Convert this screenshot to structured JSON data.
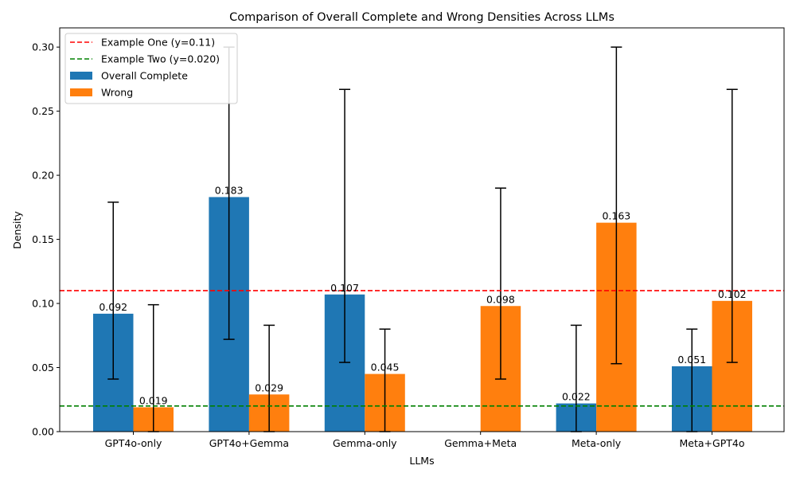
{
  "chart_data": {
    "type": "bar",
    "title": "Comparison of Overall Complete and Wrong Densities Across LLMs",
    "xlabel": "LLMs",
    "ylabel": "Density",
    "ylim": [
      0,
      0.315
    ],
    "yticks": [
      "0.00",
      "0.05",
      "0.10",
      "0.15",
      "0.20",
      "0.25",
      "0.30"
    ],
    "categories": [
      "GPT4o-only",
      "GPT4o+Gemma",
      "Gemma-only",
      "Gemma+Meta",
      "Meta-only",
      "Meta+GPT4o"
    ],
    "series": [
      {
        "name": "Overall Complete",
        "color": "#1f77b4",
        "values": [
          0.092,
          0.183,
          0.107,
          null,
          0.022,
          0.051
        ],
        "labels": [
          "0.092",
          "0.183",
          "0.107",
          "",
          "0.022",
          "0.051"
        ],
        "err_low": [
          0.041,
          0.072,
          0.054,
          null,
          0.0,
          0.0
        ],
        "err_high": [
          0.179,
          0.3,
          0.267,
          null,
          0.083,
          0.08
        ]
      },
      {
        "name": "Wrong",
        "color": "#ff7f0e",
        "values": [
          0.019,
          0.029,
          0.045,
          0.098,
          0.163,
          0.102
        ],
        "labels": [
          "0.019",
          "0.029",
          "0.045",
          "0.098",
          "0.163",
          "0.102"
        ],
        "err_low": [
          0.0,
          0.0,
          0.0,
          0.041,
          0.053,
          0.054
        ],
        "err_high": [
          0.099,
          0.083,
          0.08,
          0.19,
          0.3,
          0.267
        ]
      }
    ],
    "reference_lines": [
      {
        "name": "Example One (y=0.11)",
        "y": 0.11,
        "color": "#ff0000"
      },
      {
        "name": "Example Two (y=0.020)",
        "y": 0.02,
        "color": "#008000"
      }
    ],
    "legend_position": "top-left",
    "grid": false
  }
}
